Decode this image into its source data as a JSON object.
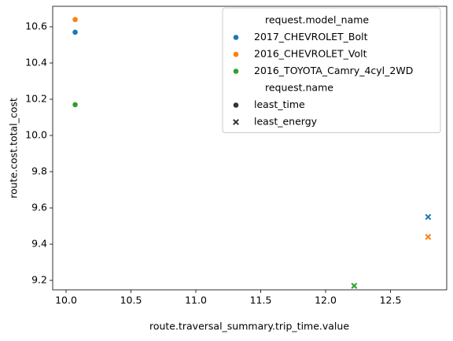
{
  "chart_data": {
    "type": "scatter",
    "xlabel": "route.traversal_summary.trip_time.value",
    "ylabel": "route.cost.total_cost",
    "xlim": [
      9.897,
      12.933
    ],
    "ylim": [
      9.148,
      10.713
    ],
    "xticks": [
      {
        "value": 10,
        "label": "10.0"
      },
      10.5,
      {
        "value": 11,
        "label": "11.0"
      },
      11.5,
      {
        "value": 12,
        "label": "12.0"
      },
      12.5
    ],
    "yticks": [
      9.2,
      9.4,
      9.6,
      9.8,
      {
        "value": 10,
        "label": "10.0"
      },
      10.2,
      10.4,
      10.6
    ],
    "hue_legend_title": "request.model_name",
    "series": [
      {
        "name": "2017_CHEVROLET_Bolt",
        "color": "#1f77b4",
        "x": [
          10.07,
          12.79
        ],
        "values": [
          10.57,
          9.55
        ]
      },
      {
        "name": "2016_CHEVROLET_Volt",
        "color": "#ff7f0e",
        "x": [
          10.07,
          12.79
        ],
        "values": [
          10.64,
          9.44
        ]
      },
      {
        "name": "2016_TOYOTA_Camry_4cyl_2WD",
        "color": "#2ca02c",
        "x": [
          10.07,
          12.22
        ],
        "values": [
          10.17,
          9.17
        ]
      }
    ],
    "style_legend": {
      "title": "request.name",
      "entries": [
        {
          "name": "least_time",
          "marker": "circle"
        },
        {
          "name": "least_energy",
          "marker": "x"
        }
      ]
    },
    "legend_position": "upper right"
  }
}
